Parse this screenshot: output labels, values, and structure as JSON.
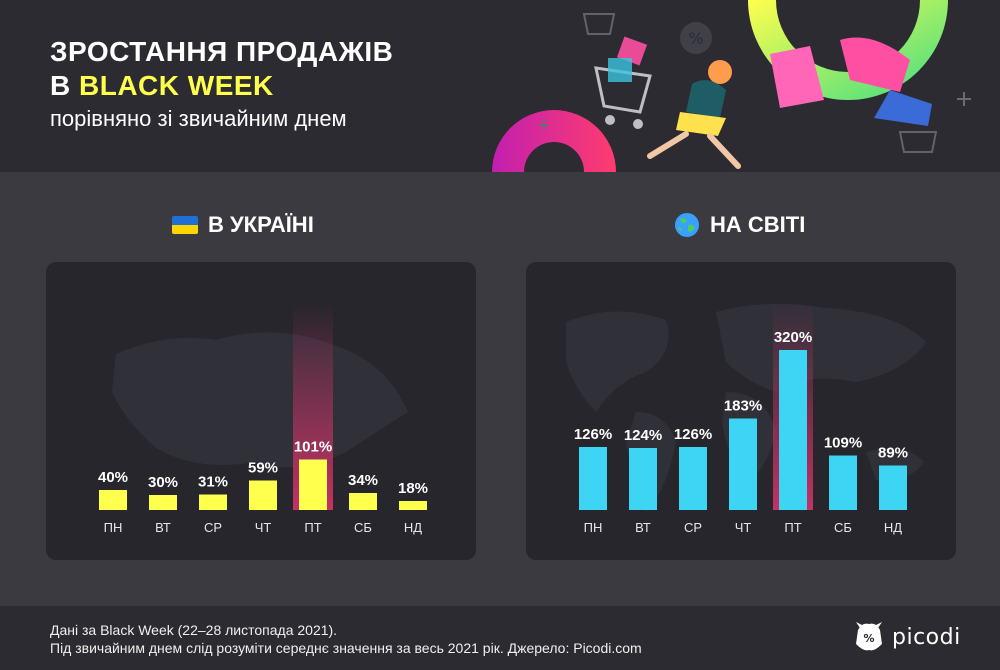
{
  "header": {
    "title_line1": "ЗРОСТАННЯ ПРОДАЖІВ",
    "title_line2_prefix": "В ",
    "title_line2_accent": "BLACK WEEK",
    "subtitle": "порівняно зі звичайним днем"
  },
  "sections": {
    "ukraine_title": "В УКРАЇНІ",
    "world_title": "НА СВІТІ"
  },
  "colors": {
    "ukraine_bar": "#ffff4d",
    "world_bar": "#3dd5f3",
    "highlight": "#e0336f",
    "accent_yellow": "#ffff4d",
    "flag_blue": "#1f6fd6",
    "flag_yellow": "#ffd500"
  },
  "chart_data": [
    {
      "type": "bar",
      "title": "В УКРАЇНІ",
      "categories": [
        "ПН",
        "ВТ",
        "СР",
        "ЧТ",
        "ПТ",
        "СБ",
        "НД"
      ],
      "values": [
        40,
        30,
        31,
        59,
        101,
        34,
        18
      ],
      "labels": [
        "40%",
        "30%",
        "31%",
        "59%",
        "101%",
        "34%",
        "18%"
      ],
      "highlight_index": 4,
      "ylim": [
        0,
        320
      ]
    },
    {
      "type": "bar",
      "title": "НА СВІТІ",
      "categories": [
        "ПН",
        "ВТ",
        "СР",
        "ЧТ",
        "ПТ",
        "СБ",
        "НД"
      ],
      "values": [
        126,
        124,
        126,
        183,
        320,
        109,
        89
      ],
      "labels": [
        "126%",
        "124%",
        "126%",
        "183%",
        "320%",
        "109%",
        "89%"
      ],
      "highlight_index": 4,
      "ylim": [
        0,
        320
      ]
    }
  ],
  "footer": {
    "note_line1": "Дані за Black Week (22–28 листопада 2021).",
    "note_line2": "Під звичайним днем слід розуміти середнє значення за весь 2021 рік. Джерело: Picodi.com",
    "brand": "picodi"
  }
}
